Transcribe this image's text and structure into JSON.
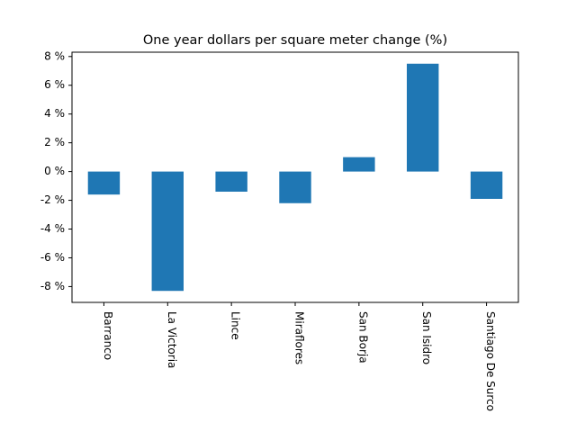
{
  "chart_data": {
    "type": "bar",
    "title": "One year dollars per square meter change (%)",
    "xlabel": "",
    "ylabel": "",
    "categories": [
      "Barranco",
      "La Victoria",
      "Lince",
      "Miraflores",
      "San Borja",
      "San Isidro",
      "Santiago De Surco"
    ],
    "values": [
      -1.6,
      -8.3,
      -1.4,
      -2.2,
      1.0,
      7.5,
      -1.9
    ],
    "ylim": [
      -9.1,
      8.3
    ],
    "yticks": [
      8,
      6,
      4,
      2,
      0,
      -2,
      -4,
      -6,
      -8
    ],
    "ytick_labels": [
      "8 %",
      "6 %",
      "4 %",
      "2 %",
      "0 %",
      "-2 %",
      "-4 %",
      "-6 %",
      "-8 %"
    ],
    "bar_color": "#1f77b4",
    "grid": false,
    "legend": "none"
  }
}
